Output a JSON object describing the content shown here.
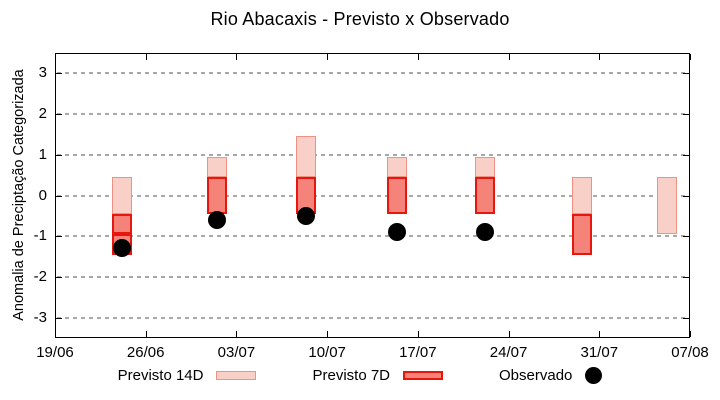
{
  "title": "Rio Abacaxis - Previsto x Observado",
  "legend": {
    "items": [
      {
        "label": "Previsto 14D",
        "swatch": "light-box"
      },
      {
        "label": "Previsto 7D",
        "swatch": "dark-box"
      },
      {
        "label": "Observado",
        "swatch": "dot"
      }
    ]
  },
  "colors": {
    "previsto_14d_fill": "#f9d0c8",
    "previsto_14d_border": "#ee9383",
    "previsto_7d_fill": "#f5837a",
    "previsto_7d_border": "#e8170d",
    "observado_dot": "#000000",
    "grid": "#a8a8a8",
    "axis": "#000000",
    "background": "#ffffff"
  },
  "chart_data": {
    "type": "bar",
    "title": "Rio Abacaxis - Previsto x Observado",
    "xlabel": "",
    "ylabel": "Anomalia de Preciptação Categorizada",
    "ylim": [
      -3.5,
      3.5
    ],
    "yticks": [
      3,
      2,
      1,
      0,
      -1,
      -2,
      -3
    ],
    "grid": "horizontal-dashed",
    "legend_position": "bottom",
    "xlim_days": [
      0,
      49
    ],
    "xticks": [
      {
        "day": 0,
        "label": "19/06"
      },
      {
        "day": 7,
        "label": "26/06"
      },
      {
        "day": 14,
        "label": "03/07"
      },
      {
        "day": 21,
        "label": "10/07"
      },
      {
        "day": 28,
        "label": "17/07"
      },
      {
        "day": 35,
        "label": "24/07"
      },
      {
        "day": 42,
        "label": "31/07"
      },
      {
        "day": 49,
        "label": "07/08"
      }
    ],
    "series_names": [
      "Previsto 14D",
      "Previsto 7D",
      "Observado"
    ],
    "groups": [
      {
        "date": "24/06",
        "x_day": 5.2,
        "previsto_14d_segments": [
          [
            -0.45,
            0.45
          ]
        ],
        "previsto_7d_segments": [
          [
            -0.95,
            -0.45
          ],
          [
            -1.45,
            -0.95
          ]
        ],
        "observado": -1.3
      },
      {
        "date": "01/07",
        "x_day": 12.5,
        "previsto_14d_segments": [
          [
            0.45,
            0.95
          ]
        ],
        "previsto_7d_segments": [
          [
            -0.45,
            0.45
          ]
        ],
        "observado": -0.6
      },
      {
        "date": "08/07",
        "x_day": 19.4,
        "previsto_14d_segments": [
          [
            0.45,
            1.45
          ]
        ],
        "previsto_7d_segments": [
          [
            -0.45,
            0.45
          ]
        ],
        "observado": -0.5
      },
      {
        "date": "15/07",
        "x_day": 26.4,
        "previsto_14d_segments": [
          [
            0.45,
            0.95
          ]
        ],
        "previsto_7d_segments": [
          [
            -0.45,
            0.45
          ]
        ],
        "observado": -0.9
      },
      {
        "date": "22/07",
        "x_day": 33.2,
        "previsto_14d_segments": [
          [
            0.45,
            0.95
          ]
        ],
        "previsto_7d_segments": [
          [
            -0.45,
            0.45
          ]
        ],
        "observado": -0.9
      },
      {
        "date": "29/07",
        "x_day": 40.7,
        "previsto_14d_segments": [
          [
            -0.45,
            0.45
          ]
        ],
        "previsto_7d_segments": [
          [
            -1.45,
            -0.45
          ]
        ],
        "observado": null
      },
      {
        "date": "05/08",
        "x_day": 47.2,
        "previsto_14d_segments": [
          [
            -0.95,
            0.45
          ]
        ],
        "previsto_7d_segments": [],
        "observado": null
      }
    ]
  }
}
